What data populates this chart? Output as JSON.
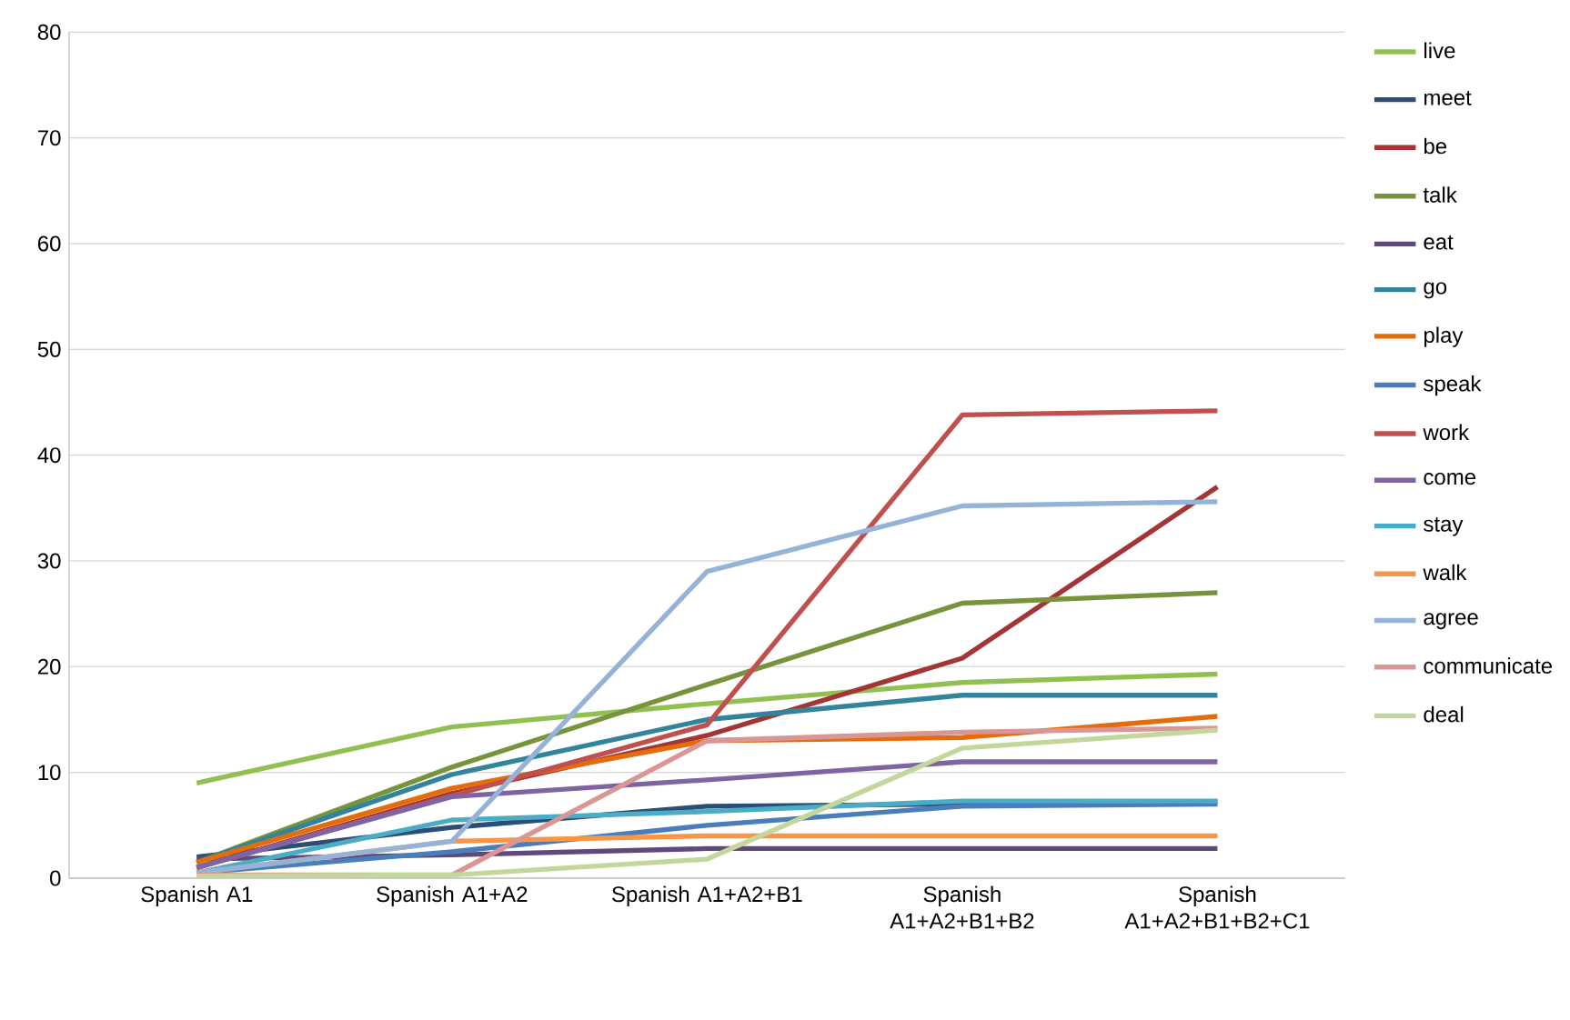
{
  "chart_data": {
    "type": "line",
    "categories": [
      "Spanish A1",
      "Spanish A1+A2",
      "Spanish A1+A2+B1",
      "Spanish A1+A2+B1+B2",
      "Spanish A1+A2+B1+B2+C1"
    ],
    "series": [
      {
        "name": "live",
        "color": "#92c050",
        "values": [
          9,
          14.3,
          16.5,
          18.5,
          19.3
        ]
      },
      {
        "name": "meet",
        "color": "#2c4d75",
        "values": [
          2,
          4.8,
          6.8,
          7,
          7.2
        ]
      },
      {
        "name": "be",
        "color": "#a33634",
        "values": [
          1,
          8,
          13.5,
          20.8,
          37
        ]
      },
      {
        "name": "talk",
        "color": "#77933c",
        "values": [
          1.5,
          10.5,
          18.3,
          26,
          27
        ]
      },
      {
        "name": "eat",
        "color": "#5f497a",
        "values": [
          1.8,
          2.2,
          2.8,
          2.8,
          2.8
        ]
      },
      {
        "name": "go",
        "color": "#31849b",
        "values": [
          1.5,
          9.8,
          15,
          17.3,
          17.3
        ]
      },
      {
        "name": "play",
        "color": "#e46c0a",
        "values": [
          1.5,
          8.5,
          13,
          13.3,
          15.3
        ]
      },
      {
        "name": "speak",
        "color": "#4a7ebb",
        "values": [
          0.5,
          2.5,
          5,
          6.8,
          7
        ]
      },
      {
        "name": "work",
        "color": "#c0504d",
        "values": [
          1,
          7.8,
          14.5,
          43.8,
          44.2
        ]
      },
      {
        "name": "come",
        "color": "#8064a2",
        "values": [
          1,
          7.7,
          9.3,
          11,
          11
        ]
      },
      {
        "name": "stay",
        "color": "#4bacc6",
        "values": [
          0.5,
          5.5,
          6.3,
          7.3,
          7.3
        ]
      },
      {
        "name": "walk",
        "color": "#f79646",
        "values": [
          0.5,
          3.5,
          4,
          4,
          4
        ]
      },
      {
        "name": "agree",
        "color": "#95b3d7",
        "values": [
          0.5,
          3.5,
          29,
          35.2,
          35.6
        ]
      },
      {
        "name": "communicate",
        "color": "#d99694",
        "values": [
          0.3,
          0.3,
          13,
          13.8,
          14.2
        ]
      },
      {
        "name": "deal",
        "color": "#c3d69b",
        "values": [
          0.2,
          0.3,
          1.8,
          12.3,
          14
        ]
      }
    ],
    "ylim": [
      0,
      80
    ],
    "yticks": [
      0,
      10,
      20,
      30,
      40,
      50,
      60,
      70,
      80
    ],
    "grid": "y",
    "legend": "right",
    "line_style": "solid"
  }
}
